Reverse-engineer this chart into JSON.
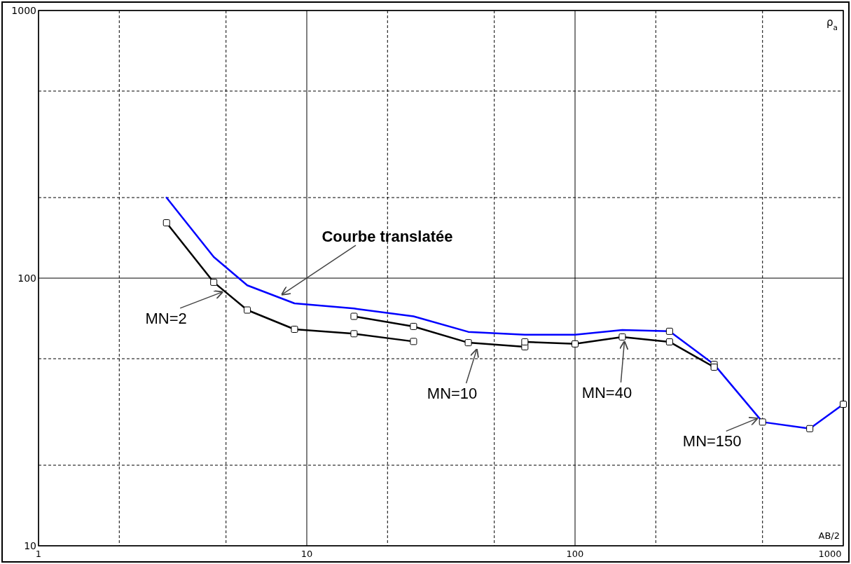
{
  "chart_data": {
    "type": "line",
    "log": "xy",
    "xlabel": "AB/2",
    "ylabel": "ρ$_{a}$",
    "xlim": [
      1,
      1000
    ],
    "ylim": [
      10,
      1000
    ],
    "xticks": [
      1,
      {
        "value": 2,
        "label": null
      },
      {
        "value": 5,
        "label": null
      },
      10,
      {
        "value": 20,
        "label": null
      },
      {
        "value": 50,
        "label": null
      },
      100,
      {
        "value": 200,
        "label": null
      },
      {
        "value": 500,
        "label": null
      },
      1000
    ],
    "yticks": [
      10,
      {
        "value": 20,
        "label": null
      },
      {
        "value": 50,
        "label": null
      },
      100,
      {
        "value": 200,
        "label": null
      },
      {
        "value": 500,
        "label": null
      },
      1000
    ],
    "grid": true,
    "line_style": "solid",
    "series": [
      {
        "color": "#0000ff",
        "marker": "none",
        "x": [
          3,
          4.5,
          6,
          9,
          15,
          25,
          40,
          65,
          100,
          150,
          225
        ],
        "values": [
          200,
          120,
          94,
          80.5,
          77,
          72,
          63,
          61.5,
          61.5,
          64,
          63.3
        ]
      },
      {
        "color": "#0000ff",
        "marker": "square",
        "x": [
          225,
          330,
          500,
          750,
          1000
        ],
        "values": [
          63.3,
          47.6,
          29,
          27.4,
          33.8
        ]
      },
      {
        "color": "#000000",
        "marker": "square",
        "x": [
          3,
          4.5,
          6,
          9,
          15,
          25
        ],
        "values": [
          161,
          96.5,
          76,
          64.4,
          62,
          58
        ]
      },
      {
        "color": "#000000",
        "marker": "square",
        "x": [
          15,
          25,
          40,
          65
        ],
        "values": [
          72,
          66,
          57.4,
          55.4
        ]
      },
      {
        "color": "#000000",
        "marker": "square",
        "x": [
          65,
          100,
          150,
          225,
          330
        ],
        "values": [
          57.8,
          56.8,
          60.3,
          57.8,
          46.5
        ]
      }
    ],
    "annotations": [
      {
        "text": "Courbe translatée",
        "x": 8.1,
        "y": 87
      },
      {
        "text": "MN=2",
        "x": 4.5,
        "y": 96.5
      },
      {
        "text": "MN=10",
        "x": 40,
        "y": 57.4
      },
      {
        "text": "MN=40",
        "x": 150,
        "y": 60.3
      },
      {
        "text": "MN=150",
        "x": 500,
        "y": 29
      }
    ]
  }
}
